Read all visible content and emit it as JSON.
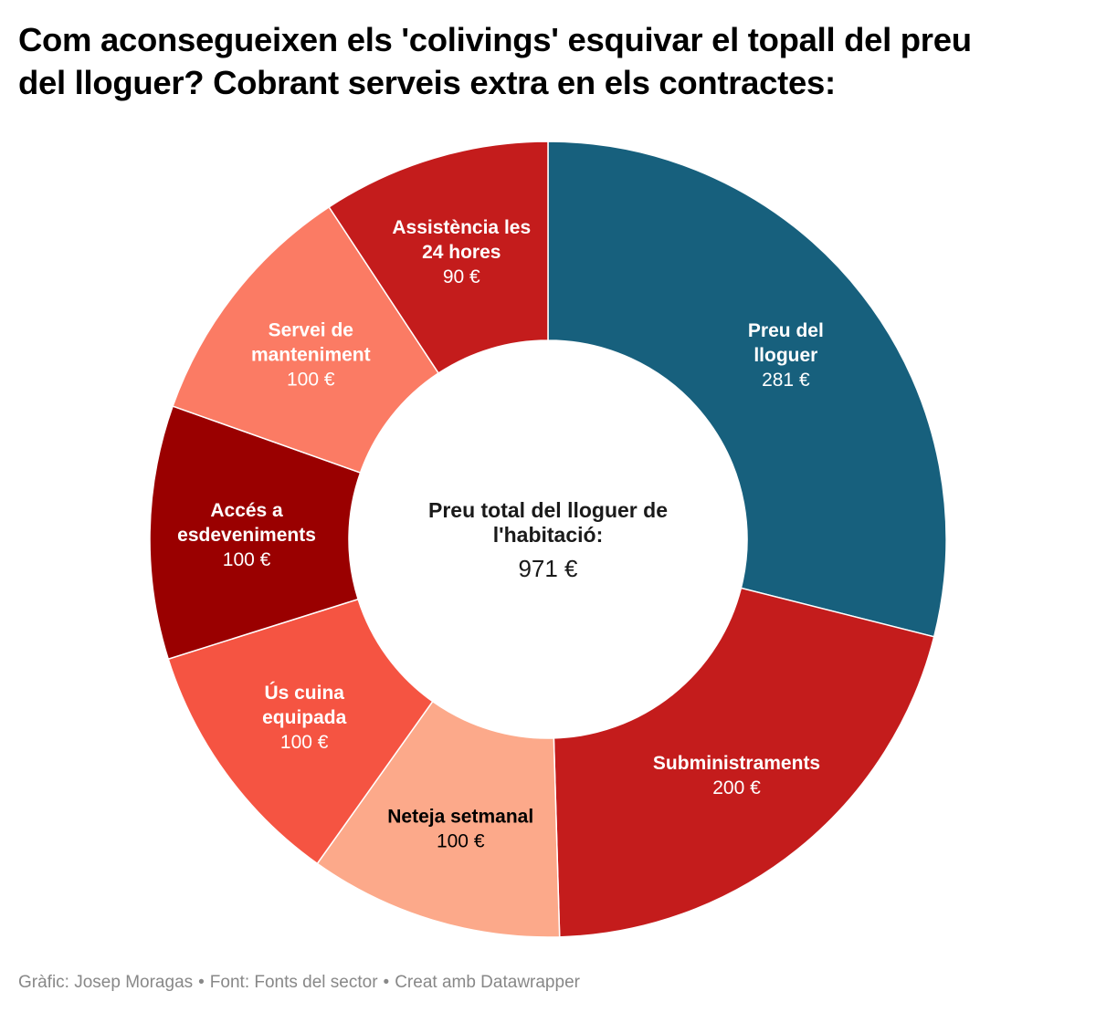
{
  "header": {
    "title_lines": [
      "Com aconsegueixen els 'colivings' esquivar el topall del preu",
      "del lloguer? Cobrant serveis extra en els contractes:"
    ]
  },
  "chart_data": {
    "type": "pie",
    "donut": true,
    "center_label": {
      "lines": [
        "Preu total del lloguer de",
        "l'habitació:"
      ],
      "value": "971 €"
    },
    "slices": [
      {
        "label_lines": [
          "Preu del",
          "lloguer"
        ],
        "value": 281,
        "value_label": "281 €",
        "color": "#17607d",
        "text_color": "#ffffff"
      },
      {
        "label_lines": [
          "Subministraments"
        ],
        "value": 200,
        "value_label": "200 €",
        "color": "#c41c1c",
        "text_color": "#ffffff"
      },
      {
        "label_lines": [
          "Neteja setmanal"
        ],
        "value": 100,
        "value_label": "100 €",
        "color": "#fca98a",
        "text_color": "#000000"
      },
      {
        "label_lines": [
          "Ús cuina",
          "equipada"
        ],
        "value": 100,
        "value_label": "100 €",
        "color": "#f55442",
        "text_color": "#ffffff"
      },
      {
        "label_lines": [
          "Accés a",
          "esdeveniments"
        ],
        "value": 100,
        "value_label": "100 €",
        "color": "#9a0000",
        "text_color": "#ffffff"
      },
      {
        "label_lines": [
          "Servei de",
          "manteniment"
        ],
        "value": 100,
        "value_label": "100 €",
        "color": "#fb7b64",
        "text_color": "#ffffff"
      },
      {
        "label_lines": [
          "Assistència les",
          "24 hores"
        ],
        "value": 90,
        "value_label": "90 €",
        "color": "#c41c1c",
        "text_color": "#ffffff"
      }
    ]
  },
  "footer": {
    "credit": "Gràfic: Josep Moragas",
    "source": "Font: Fonts del sector",
    "tool": "Creat amb Datawrapper",
    "separator": "•"
  }
}
